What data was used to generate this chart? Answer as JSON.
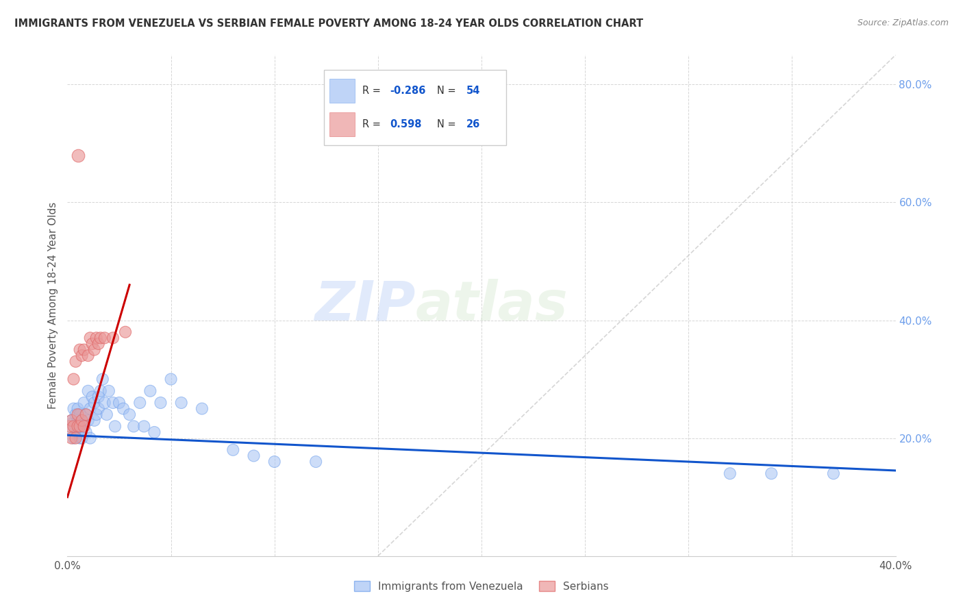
{
  "title": "IMMIGRANTS FROM VENEZUELA VS SERBIAN FEMALE POVERTY AMONG 18-24 YEAR OLDS CORRELATION CHART",
  "source": "Source: ZipAtlas.com",
  "ylabel": "Female Poverty Among 18-24 Year Olds",
  "xlim": [
    0.0,
    0.4
  ],
  "ylim": [
    0.0,
    0.85
  ],
  "watermark_zip": "ZIP",
  "watermark_atlas": "atlas",
  "blue_color": "#a4c2f4",
  "blue_edge_color": "#6d9eeb",
  "pink_color": "#ea9999",
  "pink_edge_color": "#e06666",
  "blue_line_color": "#1155cc",
  "pink_line_color": "#cc0000",
  "grid_color": "#cccccc",
  "right_tick_color": "#6d9eeb",
  "legend_r_color": "#333333",
  "legend_val_color": "#1155cc",
  "venezuela_x": [
    0.002,
    0.002,
    0.003,
    0.003,
    0.004,
    0.004,
    0.005,
    0.005,
    0.005,
    0.006,
    0.006,
    0.006,
    0.007,
    0.007,
    0.008,
    0.008,
    0.009,
    0.009,
    0.01,
    0.01,
    0.011,
    0.011,
    0.012,
    0.013,
    0.013,
    0.014,
    0.015,
    0.015,
    0.016,
    0.017,
    0.018,
    0.019,
    0.02,
    0.022,
    0.023,
    0.025,
    0.027,
    0.03,
    0.032,
    0.035,
    0.037,
    0.04,
    0.042,
    0.045,
    0.05,
    0.055,
    0.065,
    0.08,
    0.09,
    0.1,
    0.12,
    0.32,
    0.34,
    0.37
  ],
  "venezuela_y": [
    0.22,
    0.23,
    0.25,
    0.2,
    0.24,
    0.22,
    0.21,
    0.23,
    0.25,
    0.22,
    0.2,
    0.24,
    0.23,
    0.2,
    0.26,
    0.22,
    0.21,
    0.24,
    0.28,
    0.23,
    0.2,
    0.25,
    0.27,
    0.26,
    0.23,
    0.24,
    0.27,
    0.25,
    0.28,
    0.3,
    0.26,
    0.24,
    0.28,
    0.26,
    0.22,
    0.26,
    0.25,
    0.24,
    0.22,
    0.26,
    0.22,
    0.28,
    0.21,
    0.26,
    0.3,
    0.26,
    0.25,
    0.18,
    0.17,
    0.16,
    0.16,
    0.14,
    0.14,
    0.14
  ],
  "venezuela_sizes": [
    300,
    150,
    150,
    150,
    150,
    150,
    150,
    150,
    150,
    150,
    150,
    150,
    150,
    150,
    150,
    150,
    150,
    150,
    150,
    150,
    150,
    150,
    150,
    150,
    150,
    150,
    150,
    150,
    150,
    150,
    150,
    150,
    150,
    150,
    150,
    150,
    150,
    150,
    150,
    150,
    150,
    150,
    150,
    150,
    150,
    150,
    150,
    150,
    150,
    150,
    150,
    150,
    150,
    150
  ],
  "serbian_x": [
    0.001,
    0.002,
    0.002,
    0.003,
    0.003,
    0.004,
    0.004,
    0.005,
    0.005,
    0.006,
    0.006,
    0.007,
    0.007,
    0.008,
    0.008,
    0.009,
    0.01,
    0.011,
    0.012,
    0.013,
    0.014,
    0.015,
    0.016,
    0.018,
    0.022,
    0.028
  ],
  "serbian_y": [
    0.22,
    0.2,
    0.23,
    0.3,
    0.22,
    0.33,
    0.2,
    0.24,
    0.22,
    0.35,
    0.22,
    0.34,
    0.23,
    0.35,
    0.22,
    0.24,
    0.34,
    0.37,
    0.36,
    0.35,
    0.37,
    0.36,
    0.37,
    0.37,
    0.37,
    0.38
  ],
  "serbian_outlier_x": [
    0.005
  ],
  "serbian_outlier_y": [
    0.68
  ],
  "serbian_sizes": [
    150,
    150,
    150,
    150,
    150,
    150,
    150,
    150,
    150,
    150,
    150,
    150,
    150,
    150,
    150,
    150,
    150,
    150,
    150,
    150,
    150,
    150,
    150,
    150,
    150,
    150
  ],
  "ven_line_x": [
    0.0,
    0.4
  ],
  "ven_line_y": [
    0.205,
    0.145
  ],
  "ser_line_x": [
    0.0,
    0.03
  ],
  "ser_line_y": [
    0.1,
    0.46
  ],
  "diag_line_x": [
    0.15,
    0.4
  ],
  "diag_line_y": [
    0.0,
    0.85
  ]
}
